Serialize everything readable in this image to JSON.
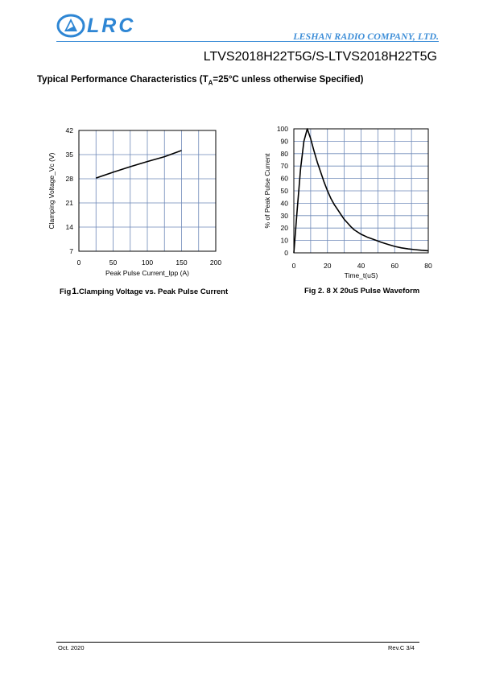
{
  "header": {
    "logo_text": "LRC",
    "company": "LESHAN RADIO COMPANY, LTD.",
    "part_number": "LTVS2018H22T5G/S-LTVS2018H22T5G"
  },
  "section": {
    "title_pre": "Typical Performance Characteristics (T",
    "title_sub": "A",
    "title_post": "=25°C unless otherwise Specified)"
  },
  "chart_data": [
    {
      "type": "line",
      "xlabel": "Peak Pulse Current_Ipp  (A)",
      "ylabel": "Clamping Voltage_Vc (V)",
      "xlim": [
        0,
        200
      ],
      "ylim": [
        7,
        42
      ],
      "xticks": [
        "0",
        "50",
        "100",
        "150",
        "200"
      ],
      "yticks": [
        "7",
        "14",
        "21",
        "28",
        "35",
        "42"
      ],
      "grid": true,
      "x": [
        25,
        50,
        75,
        100,
        125,
        150
      ],
      "y": [
        28.2,
        29.9,
        31.5,
        33.0,
        34.4,
        36.2
      ],
      "caption_pre": "Fig",
      "caption_num": "1",
      "caption_post": ".Clamping Voltage vs. Peak Pulse Current"
    },
    {
      "type": "line",
      "xlabel": "Time_t(uS)",
      "ylabel": "% of Peak Pulse Current",
      "xlim": [
        0,
        80
      ],
      "ylim": [
        0,
        100
      ],
      "xticks": [
        "0",
        "20",
        "40",
        "60",
        "80"
      ],
      "yticks": [
        "0",
        "10",
        "20",
        "30",
        "40",
        "50",
        "60",
        "70",
        "80",
        "90",
        "100"
      ],
      "grid": true,
      "x": [
        0,
        2,
        4,
        6,
        8,
        10,
        12,
        14,
        16,
        18,
        20,
        22,
        24,
        26,
        28,
        30,
        32,
        34,
        36,
        40,
        44,
        48,
        52,
        56,
        60,
        64,
        68,
        72,
        76,
        80
      ],
      "y": [
        0,
        35,
        68,
        90,
        100,
        92,
        82,
        73,
        65,
        57,
        50,
        44,
        39,
        35,
        31,
        27,
        24,
        21,
        18.5,
        15,
        12.5,
        10.5,
        8.5,
        6.8,
        5.2,
        4,
        3.2,
        2.6,
        2.1,
        1.7
      ],
      "caption": "Fig 2. 8 X 20uS Pulse Waveform"
    }
  ],
  "footer": {
    "date": "Oct. 2020",
    "revision": "Rev.C  3/4"
  }
}
